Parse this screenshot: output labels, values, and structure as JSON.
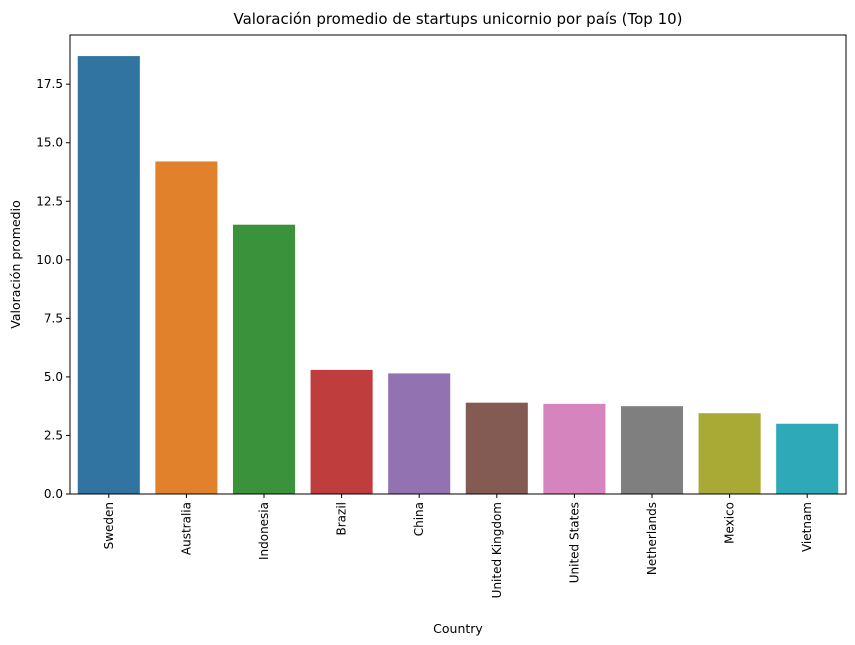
{
  "chart_data": {
    "type": "bar",
    "title": "Valoración promedio de startups unicornio por país (Top 10)",
    "xlabel": "Country",
    "ylabel": "Valoración promedio",
    "categories": [
      "Sweden",
      "Australia",
      "Indonesia",
      "Brazil",
      "China",
      "United Kingdom",
      "United States",
      "Netherlands",
      "Mexico",
      "Vietnam"
    ],
    "values": [
      18.7,
      14.2,
      11.5,
      5.3,
      5.15,
      3.9,
      3.85,
      3.75,
      3.45,
      3.0
    ],
    "colors": [
      "#3274a1",
      "#e1812c",
      "#3a923a",
      "#c03d3e",
      "#9372b2",
      "#845b53",
      "#d684bd",
      "#7f7f7f",
      "#a9aa35",
      "#2ea9b8"
    ],
    "ylim": [
      0,
      19.6
    ],
    "yticks": [
      0.0,
      2.5,
      5.0,
      7.5,
      10.0,
      12.5,
      15.0,
      17.5
    ],
    "ytick_labels": [
      "0.0",
      "2.5",
      "5.0",
      "7.5",
      "10.0",
      "12.5",
      "15.0",
      "17.5"
    ],
    "grid": false,
    "legend": "none"
  }
}
